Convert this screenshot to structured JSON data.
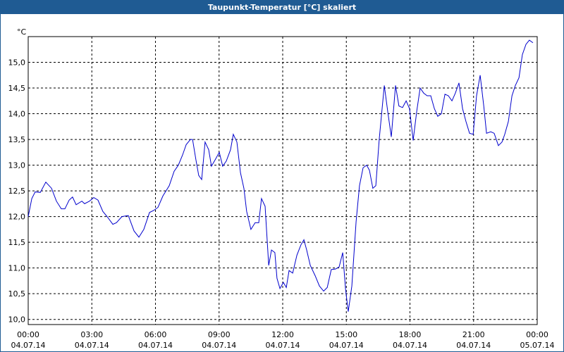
{
  "chart_data": {
    "type": "line",
    "title": "Taupunkt-Temperatur [°C] skaliert",
    "y_label": "°C",
    "color": "#0000cc",
    "grid": true,
    "xlim": [
      0,
      24
    ],
    "ylim": [
      9.9,
      15.5
    ],
    "yticks": [
      {
        "value": 10,
        "label": "10,0"
      },
      {
        "value": 10.5,
        "label": "10,5"
      },
      {
        "value": 11,
        "label": "11,0"
      },
      {
        "value": 11.5,
        "label": "11,5"
      },
      {
        "value": 12,
        "label": "12,0"
      },
      {
        "value": 12.5,
        "label": "12,5"
      },
      {
        "value": 13,
        "label": "13,0"
      },
      {
        "value": 13.5,
        "label": "13,5"
      },
      {
        "value": 14,
        "label": "14,0"
      },
      {
        "value": 14.5,
        "label": "14,5"
      },
      {
        "value": 15,
        "label": "15,0"
      }
    ],
    "xticks": [
      {
        "value": 0,
        "label": "00:00",
        "date": "04.07.14"
      },
      {
        "value": 3,
        "label": "03:00",
        "date": "04.07.14"
      },
      {
        "value": 6,
        "label": "06:00",
        "date": "04.07.14"
      },
      {
        "value": 9,
        "label": "09:00",
        "date": "04.07.14"
      },
      {
        "value": 12,
        "label": "12:00",
        "date": "04.07.14"
      },
      {
        "value": 15,
        "label": "15:00",
        "date": "04.07.14"
      },
      {
        "value": 18,
        "label": "18:00",
        "date": "04.07.14"
      },
      {
        "value": 21,
        "label": "21:00",
        "date": "04.07.14"
      },
      {
        "value": 24,
        "label": "00:00",
        "date": "05.07.14"
      }
    ],
    "x": [
      0,
      0.17,
      0.33,
      0.57,
      0.83,
      1.1,
      1.33,
      1.56,
      1.73,
      1.93,
      2.09,
      2.26,
      2.53,
      2.66,
      2.89,
      3.09,
      3.29,
      3.52,
      3.72,
      3.99,
      4.16,
      4.42,
      4.72,
      4.99,
      5.22,
      5.45,
      5.72,
      5.92,
      6.12,
      6.35,
      6.65,
      6.88,
      7.08,
      7.28,
      7.45,
      7.65,
      7.75,
      7.91,
      8.04,
      8.18,
      8.34,
      8.51,
      8.64,
      8.81,
      9.01,
      9.17,
      9.34,
      9.54,
      9.67,
      9.84,
      10.01,
      10.17,
      10.3,
      10.5,
      10.7,
      10.87,
      11.0,
      11.17,
      11.34,
      11.47,
      11.63,
      11.73,
      11.87,
      12.03,
      12.17,
      12.3,
      12.47,
      12.67,
      12.86,
      13.0,
      13.13,
      13.3,
      13.53,
      13.73,
      13.93,
      14.1,
      14.29,
      14.49,
      14.66,
      14.83,
      14.96,
      15.09,
      15.26,
      15.46,
      15.62,
      15.79,
      15.96,
      16.09,
      16.25,
      16.39,
      16.55,
      16.79,
      16.95,
      17.12,
      17.32,
      17.48,
      17.65,
      17.82,
      17.98,
      18.15,
      18.32,
      18.48,
      18.65,
      18.81,
      18.98,
      19.15,
      19.31,
      19.48,
      19.65,
      19.81,
      19.98,
      20.14,
      20.31,
      20.48,
      20.64,
      20.81,
      20.98,
      21.14,
      21.31,
      21.48,
      21.61,
      21.81,
      21.97,
      22.17,
      22.34,
      22.47,
      22.64,
      22.81,
      22.97,
      23.14,
      23.3,
      23.47,
      23.63,
      23.8
    ],
    "values": [
      12.0,
      12.35,
      12.48,
      12.47,
      12.67,
      12.55,
      12.3,
      12.15,
      12.15,
      12.32,
      12.38,
      12.23,
      12.3,
      12.25,
      12.3,
      12.37,
      12.32,
      12.1,
      12.0,
      11.85,
      11.88,
      12.0,
      12.02,
      11.72,
      11.6,
      11.75,
      12.08,
      12.12,
      12.18,
      12.4,
      12.6,
      12.88,
      13.0,
      13.2,
      13.4,
      13.5,
      13.5,
      13.1,
      12.8,
      12.72,
      13.45,
      13.3,
      12.98,
      13.1,
      13.25,
      12.98,
      13.08,
      13.3,
      13.6,
      13.45,
      12.85,
      12.55,
      12.1,
      11.75,
      11.88,
      11.88,
      12.35,
      12.2,
      11.05,
      11.35,
      11.3,
      10.8,
      10.6,
      10.72,
      10.62,
      10.95,
      10.9,
      11.25,
      11.45,
      11.55,
      11.35,
      11.05,
      10.85,
      10.65,
      10.55,
      10.62,
      10.97,
      10.98,
      11.02,
      11.3,
      10.6,
      10.15,
      10.65,
      11.9,
      12.6,
      12.95,
      13.0,
      12.9,
      12.55,
      12.6,
      13.5,
      14.55,
      14.05,
      13.55,
      14.55,
      14.15,
      14.12,
      14.25,
      14.1,
      13.48,
      14.05,
      14.5,
      14.4,
      14.35,
      14.35,
      14.1,
      13.95,
      14.0,
      14.38,
      14.35,
      14.25,
      14.4,
      14.6,
      14.1,
      13.85,
      13.62,
      13.6,
      14.35,
      14.75,
      14.15,
      13.62,
      13.65,
      13.62,
      13.38,
      13.45,
      13.6,
      13.85,
      14.35,
      14.55,
      14.7,
      15.15,
      15.35,
      15.43,
      15.38
    ]
  }
}
